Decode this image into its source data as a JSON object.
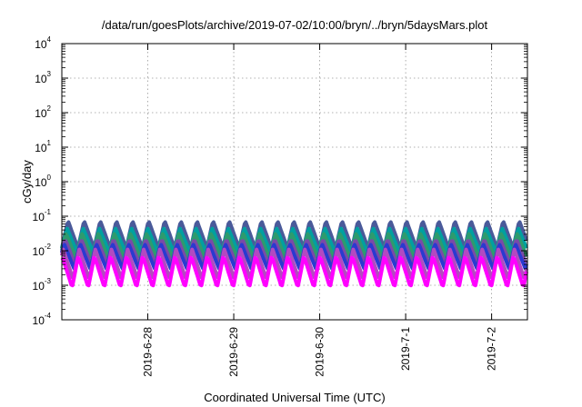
{
  "chart_data": {
    "type": "area",
    "title": "/data/run/goesPlots/archive/2019-07-02/10:00/bryn/../bryn/5daysMars.plot",
    "xlabel": "Coordinated Universal Time (UTC)",
    "ylabel": "cGy/day",
    "y_scale": "log",
    "ylim": [
      0.0001,
      10000
    ],
    "y_ticks": [
      {
        "base": "10",
        "exp": "-4",
        "value": 0.0001
      },
      {
        "base": "10",
        "exp": "-3",
        "value": 0.001
      },
      {
        "base": "10",
        "exp": "-2",
        "value": 0.01
      },
      {
        "base": "10",
        "exp": "-1",
        "value": 0.1
      },
      {
        "base": "10",
        "exp": "0",
        "value": 1
      },
      {
        "base": "10",
        "exp": "1",
        "value": 10
      },
      {
        "base": "10",
        "exp": "2",
        "value": 100
      },
      {
        "base": "10",
        "exp": "3",
        "value": 1000
      },
      {
        "base": "10",
        "exp": "4",
        "value": 10000
      }
    ],
    "xlim": [
      "2019-06-27T00:00",
      "2019-07-02T10:00"
    ],
    "x_ticks": [
      "2019-6-28",
      "2019-6-29",
      "2019-6-30",
      "2019-7-1",
      "2019-7-2"
    ],
    "grid": true,
    "oscillation_period_hours": 4.5,
    "series": [
      {
        "color": "#4a5a9a",
        "low": 0.012,
        "high": 0.075
      },
      {
        "color": "#00a0a0",
        "low": 0.009,
        "high": 0.045
      },
      {
        "color": "#2e9a6e",
        "low": 0.006,
        "high": 0.032
      },
      {
        "color": "#7a4aa8",
        "low": 0.004,
        "high": 0.022
      },
      {
        "color": "#2a3ad0",
        "low": 0.003,
        "high": 0.016
      },
      {
        "color": "#b34ac0",
        "low": 0.0015,
        "high": 0.011
      },
      {
        "color": "#ff00ff",
        "low": 0.00085,
        "high": 0.007
      }
    ]
  }
}
